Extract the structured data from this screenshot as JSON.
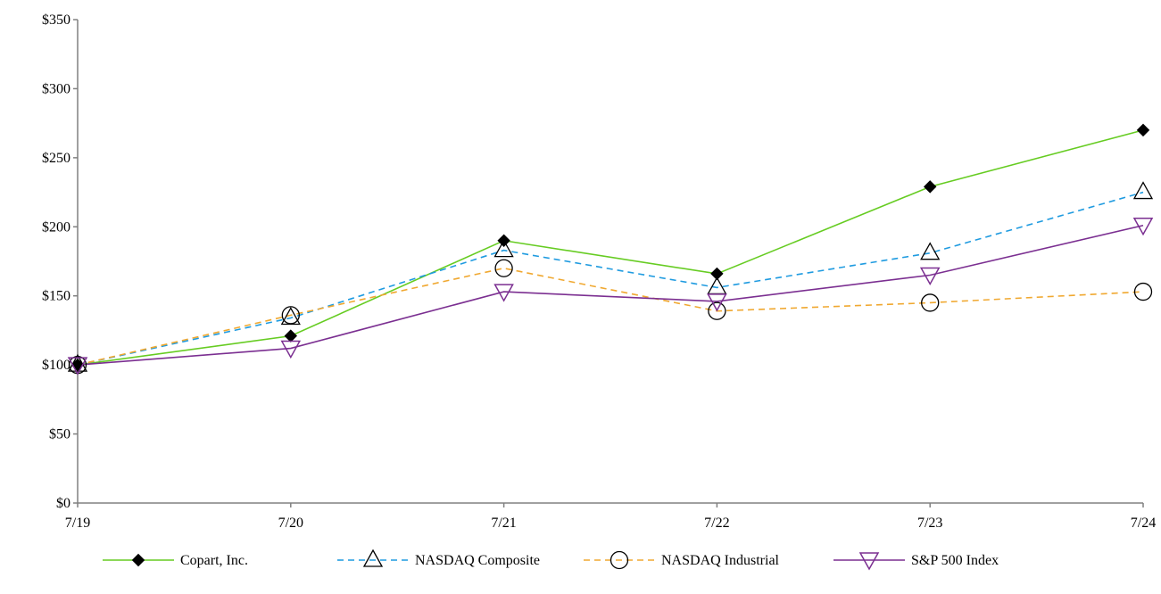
{
  "chart_data": {
    "type": "line",
    "categories": [
      "7/19",
      "7/20",
      "7/21",
      "7/22",
      "7/23",
      "7/24"
    ],
    "ylim": [
      0,
      350
    ],
    "yticks": [
      0,
      50,
      100,
      150,
      200,
      250,
      300,
      350
    ],
    "ytick_labels": [
      "$0",
      "$50",
      "$100",
      "$150",
      "$200",
      "$250",
      "$300",
      "$350"
    ],
    "title": "",
    "xlabel": "",
    "ylabel": "",
    "grid": false,
    "legend_position": "bottom",
    "series": [
      {
        "name": "Copart, Inc.",
        "values": [
          100,
          121,
          190,
          166,
          229,
          270
        ],
        "color": "#66cc22",
        "line_style": "solid",
        "marker": "filled-diamond"
      },
      {
        "name": "NASDAQ Composite",
        "values": [
          100,
          134,
          183,
          156,
          181,
          225
        ],
        "color": "#1f9be0",
        "line_style": "dashed",
        "marker": "open-triangle-up"
      },
      {
        "name": "NASDAQ Industrial",
        "values": [
          100,
          136,
          170,
          139,
          145,
          153
        ],
        "color": "#f0a830",
        "line_style": "dashed",
        "marker": "open-circle"
      },
      {
        "name": "S&P 500 Index",
        "values": [
          100,
          112,
          153,
          146,
          165,
          201
        ],
        "color": "#7b2f91",
        "line_style": "solid",
        "marker": "open-triangle-down"
      }
    ]
  }
}
